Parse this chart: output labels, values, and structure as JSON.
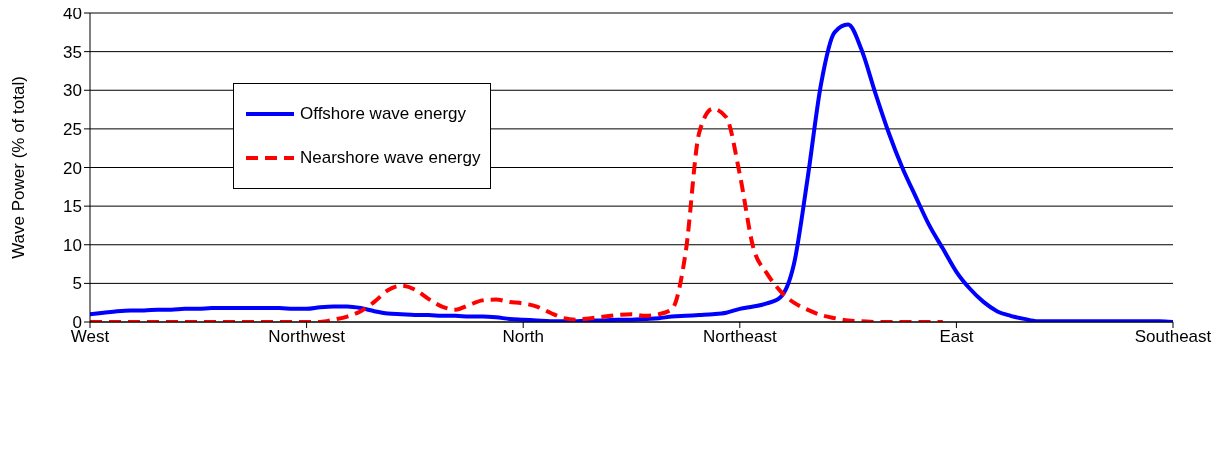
{
  "chart_data": {
    "type": "line",
    "ylabel": "Wave Power (% of total)",
    "categories": [
      "West",
      null,
      null,
      null,
      null,
      null,
      null,
      null,
      null,
      null,
      null,
      null,
      null,
      null,
      null,
      null,
      "Northwest",
      null,
      null,
      null,
      null,
      null,
      null,
      null,
      null,
      null,
      null,
      null,
      null,
      null,
      null,
      null,
      "North",
      null,
      null,
      null,
      null,
      null,
      null,
      null,
      null,
      null,
      null,
      null,
      null,
      null,
      null,
      null,
      "Northeast",
      null,
      null,
      null,
      null,
      null,
      null,
      null,
      null,
      null,
      null,
      null,
      null,
      null,
      null,
      null,
      "East",
      null,
      null,
      null,
      null,
      null,
      null,
      null,
      null,
      null,
      null,
      null,
      null,
      null,
      null,
      null,
      "Southeast"
    ],
    "ylim": [
      0,
      40
    ],
    "yticks": [
      0,
      5,
      10,
      15,
      20,
      25,
      30,
      35,
      40
    ],
    "grid": "y",
    "legend": "top left",
    "marker": "none",
    "series": [
      {
        "name": "Offshore wave energy",
        "color": "#0000ff",
        "line_style": "solid",
        "values": [
          1.0,
          1.2,
          1.4,
          1.5,
          1.5,
          1.6,
          1.6,
          1.7,
          1.7,
          1.8,
          1.8,
          1.8,
          1.8,
          1.8,
          1.8,
          1.7,
          1.7,
          1.9,
          2.0,
          2.0,
          1.8,
          1.4,
          1.1,
          1.0,
          0.9,
          0.9,
          0.8,
          0.8,
          0.7,
          0.7,
          0.6,
          0.4,
          0.3,
          0.2,
          0.1,
          0.1,
          0.1,
          0.2,
          0.2,
          0.3,
          0.3,
          0.4,
          0.5,
          0.7,
          0.8,
          0.9,
          1.0,
          1.2,
          1.7,
          2.0,
          2.4,
          3.2,
          7.5,
          18.5,
          30.8,
          37.5,
          38.5,
          35.2,
          29.7,
          24.5,
          20.0,
          16.2,
          12.5,
          9.5,
          6.5,
          4.3,
          2.6,
          1.4,
          0.8,
          0.4,
          0.1,
          0.1,
          0.1,
          0.1,
          0.1,
          0.1,
          0.1,
          0.1,
          0.1,
          0.1,
          0
        ]
      },
      {
        "name": "Nearshore wave energy",
        "color": "#ff0000",
        "line_style": "dashed",
        "values": [
          0,
          0,
          0,
          0,
          0,
          0,
          0,
          0,
          0,
          0,
          0,
          0,
          0,
          0,
          0,
          0,
          0,
          0,
          0.3,
          0.7,
          1.4,
          2.6,
          4.1,
          4.7,
          4.2,
          3.0,
          2.0,
          1.6,
          2.2,
          2.8,
          2.9,
          2.6,
          2.4,
          2.0,
          1.2,
          0.5,
          0.3,
          0.5,
          0.7,
          0.9,
          1.0,
          0.8,
          1.0,
          1.7,
          9.0,
          24.5,
          27.6,
          26.5,
          19.1,
          9.6,
          6.3,
          4.0,
          2.5,
          1.6,
          0.9,
          0.5,
          0.2,
          0.1,
          0,
          0,
          0,
          0,
          0,
          0,
          null,
          null,
          null,
          null,
          null,
          null,
          null,
          null,
          null,
          null,
          null,
          null,
          null,
          null,
          null,
          null,
          null
        ]
      }
    ]
  }
}
